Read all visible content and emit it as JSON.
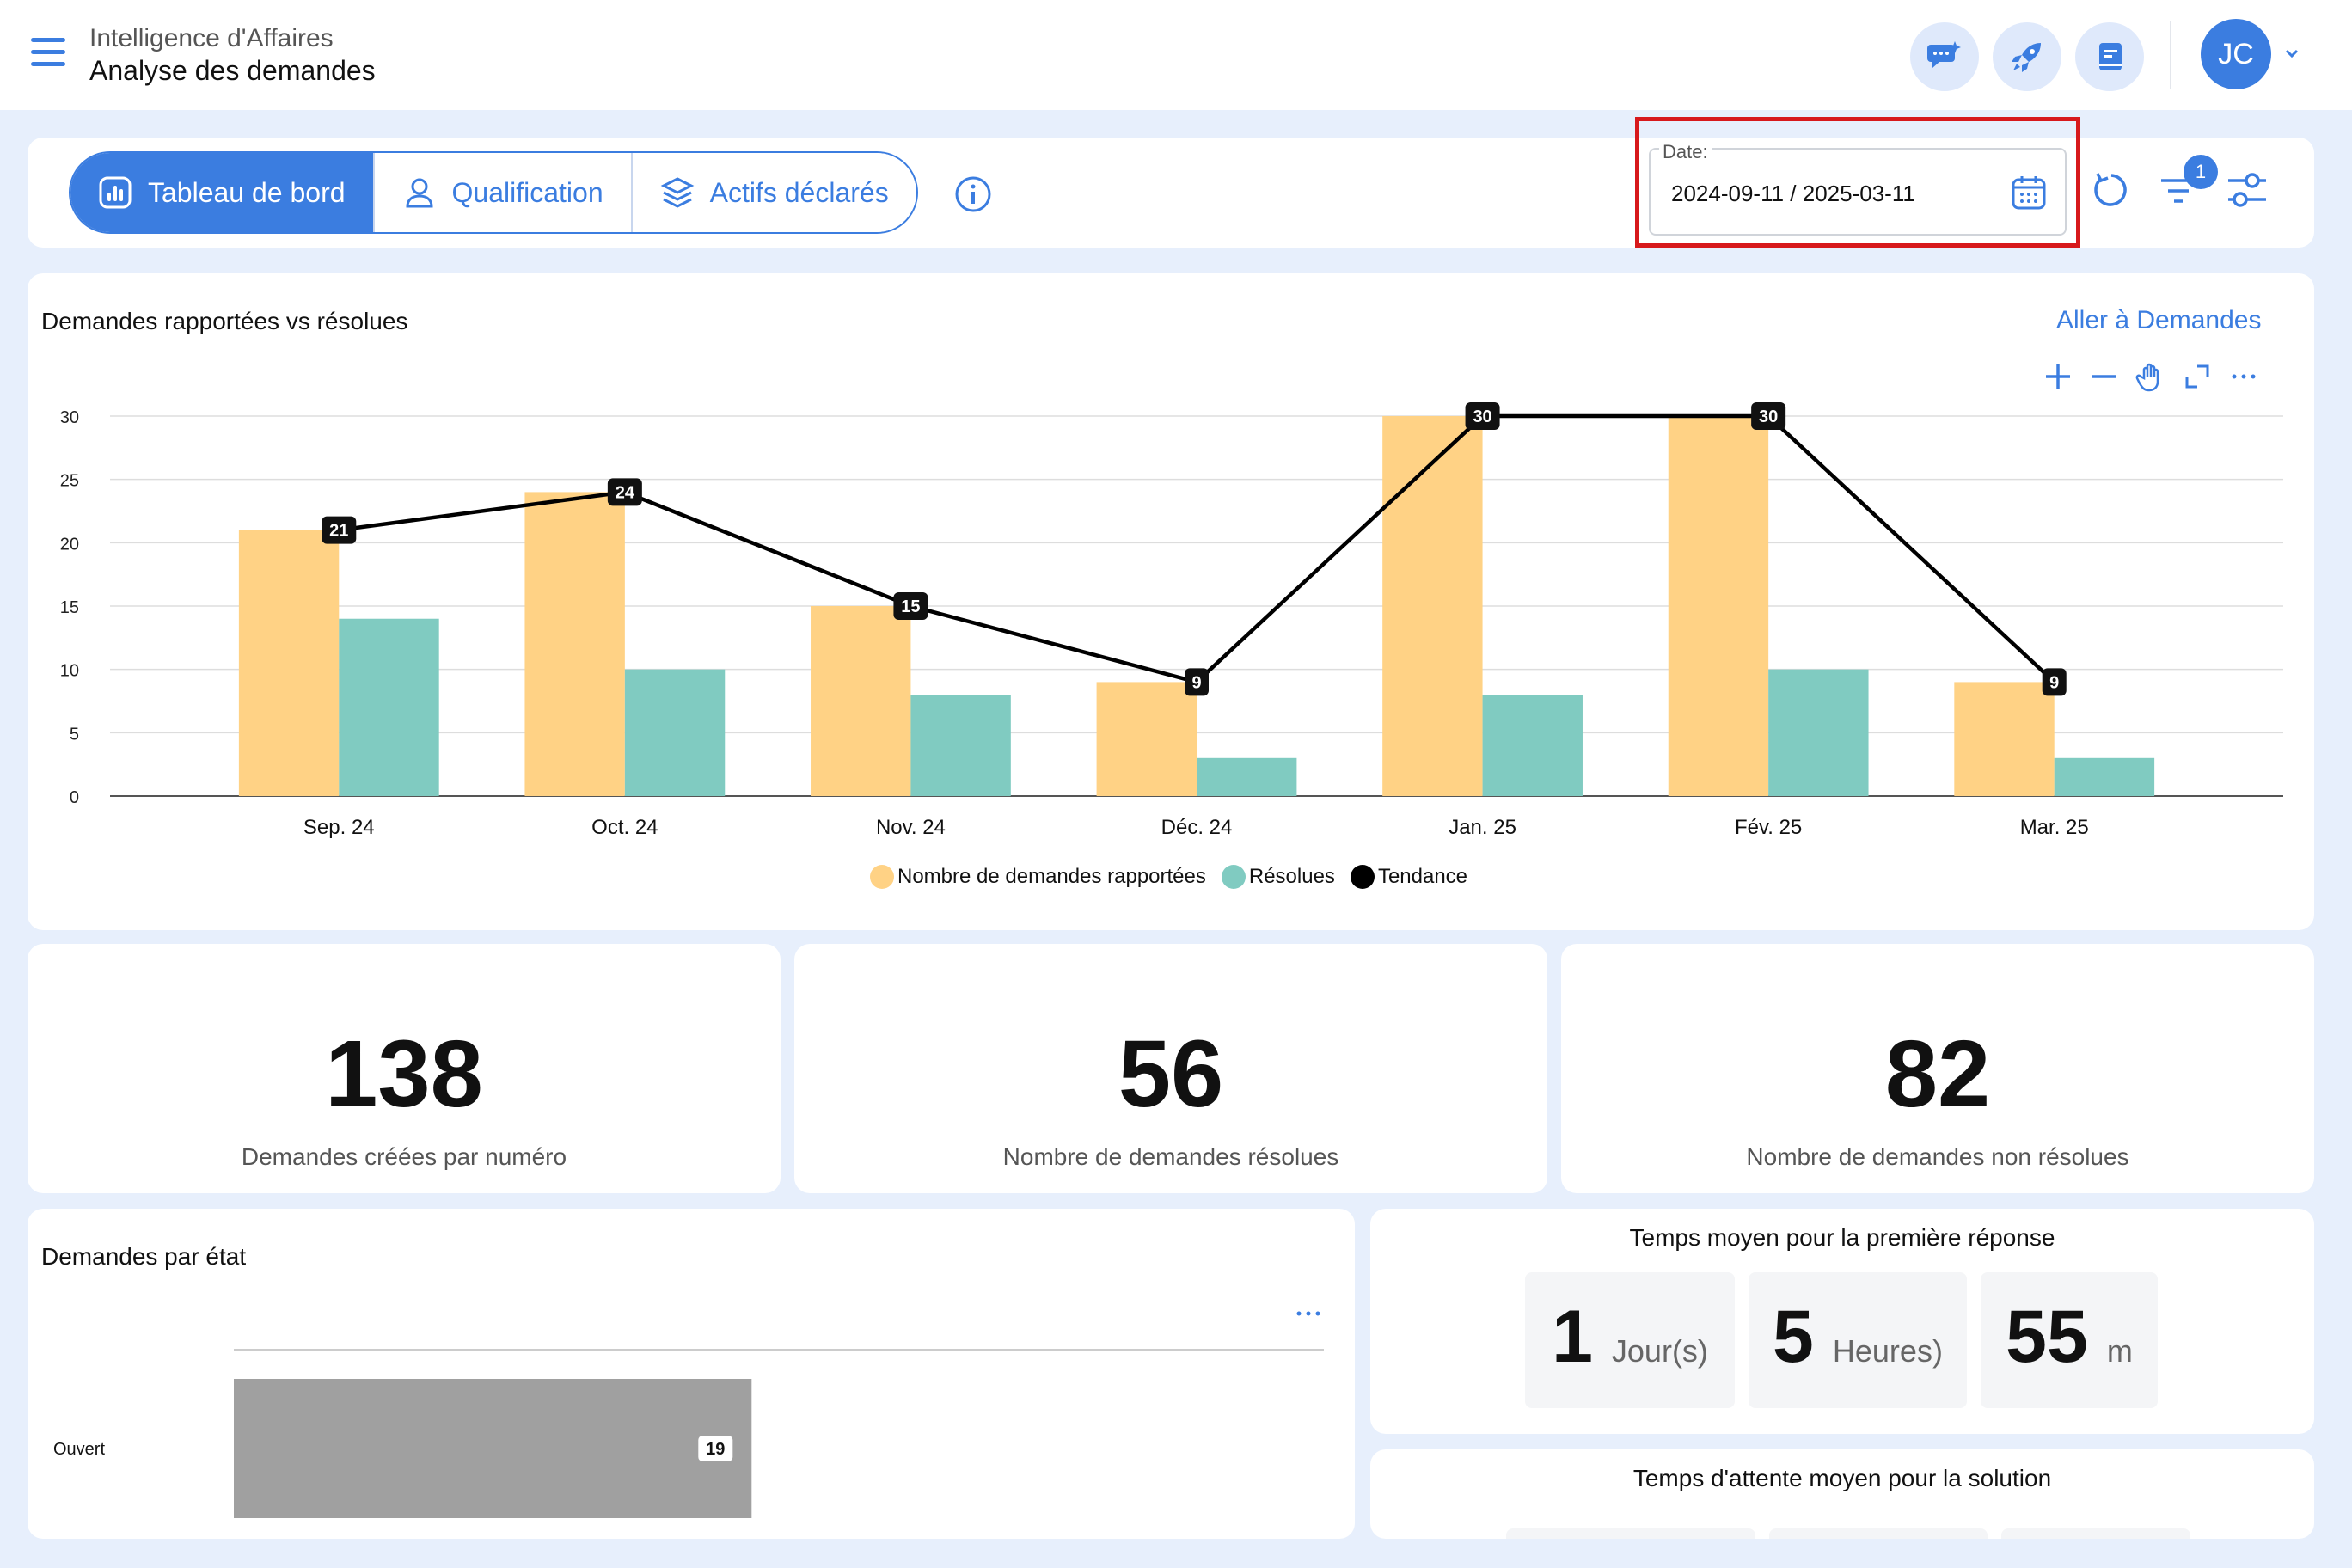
{
  "header": {
    "super_title": "Intelligence d'Affaires",
    "title": "Analyse des demandes",
    "actions": [
      "ai-chat-icon",
      "rocket-icon",
      "book-icon"
    ],
    "user_initials": "JC"
  },
  "toolbar": {
    "tabs": [
      {
        "label": "Tableau de bord",
        "icon": "dashboard-icon",
        "active": true
      },
      {
        "label": "Qualification",
        "icon": "user-icon",
        "active": false
      },
      {
        "label": "Actifs déclarés",
        "icon": "layers-icon",
        "active": false
      }
    ],
    "date_label": "Date:",
    "date_value": "2024-09-11 / 2025-03-11",
    "filter_count": "1"
  },
  "chart_card": {
    "title": "Demandes rapportées vs résolues",
    "link": "Aller à Demandes",
    "tools": [
      "plus-icon",
      "minus-icon",
      "hand-icon",
      "expand-icon",
      "more-icon"
    ]
  },
  "chart_data": [
    {
      "type": "bar",
      "categories": [
        "Sep. 24",
        "Oct. 24",
        "Nov. 24",
        "Déc. 24",
        "Jan. 25",
        "Fév. 25",
        "Mar. 25"
      ],
      "series": [
        {
          "name": "Nombre de demandes rapportées",
          "type": "bar",
          "color": "#ffd285",
          "values": [
            21,
            24,
            15,
            9,
            30,
            30,
            9
          ]
        },
        {
          "name": "Résolues",
          "type": "bar",
          "color": "#80cbc1",
          "values": [
            14,
            10,
            8,
            3,
            8,
            10,
            3
          ]
        },
        {
          "name": "Tendance",
          "type": "line",
          "color": "#000000",
          "values": [
            21,
            24,
            15,
            9,
            30,
            30,
            9
          ]
        }
      ],
      "ylim": [
        0,
        30
      ],
      "yticks": [
        0,
        5,
        10,
        15,
        20,
        25,
        30
      ],
      "grid": true,
      "legend": "bottom"
    },
    {
      "type": "bar",
      "orientation": "horizontal",
      "title": "Demandes par état",
      "categories": [
        "Ouvert"
      ],
      "values": [
        19
      ],
      "color": "#a0a0a0"
    }
  ],
  "stats": [
    {
      "value": "138",
      "label": "Demandes créées par numéro"
    },
    {
      "value": "56",
      "label": "Nombre de demandes résolues"
    },
    {
      "value": "82",
      "label": "Nombre de demandes non résolues"
    }
  ],
  "state_card": {
    "title": "Demandes par état"
  },
  "first_response": {
    "title": "Temps moyen pour la première réponse",
    "parts": [
      {
        "value": "1",
        "unit": "Jour(s)"
      },
      {
        "value": "5",
        "unit": "Heures)"
      },
      {
        "value": "55",
        "unit": "m"
      }
    ]
  },
  "wait_card": {
    "title": "Temps d'attente moyen pour la solution"
  }
}
